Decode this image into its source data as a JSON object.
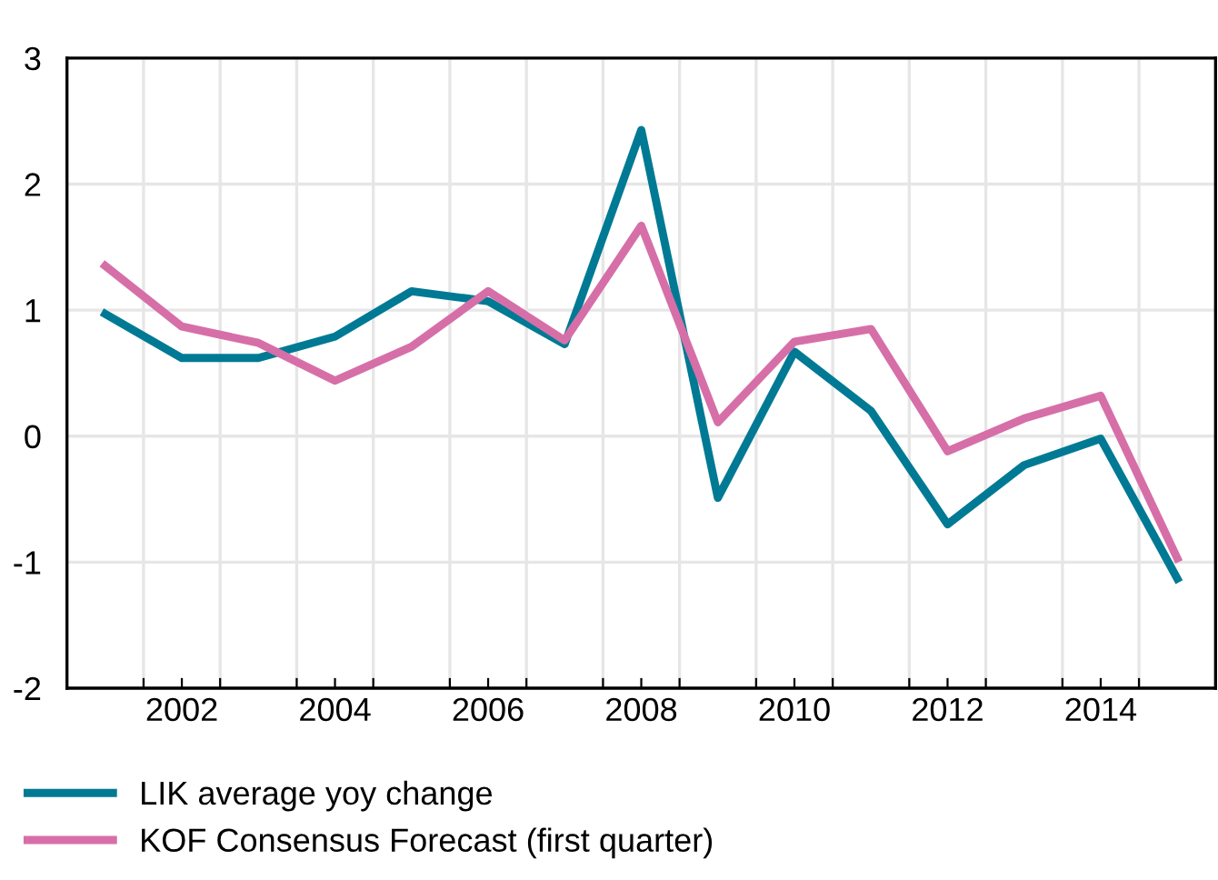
{
  "chart_data": {
    "type": "line",
    "x": [
      2001,
      2002,
      2003,
      2004,
      2005,
      2006,
      2007,
      2008,
      2009,
      2010,
      2011,
      2012,
      2013,
      2014,
      2015
    ],
    "series": [
      {
        "name": "LIK average yoy change",
        "color": "#007a94",
        "values": [
          0.97,
          0.62,
          0.62,
          0.79,
          1.15,
          1.07,
          0.73,
          2.43,
          -0.49,
          0.67,
          0.2,
          -0.7,
          -0.23,
          -0.02,
          -1.13
        ]
      },
      {
        "name": "KOF Consensus Forecast (first quarter)",
        "color": "#d66fa8",
        "values": [
          1.35,
          0.87,
          0.74,
          0.44,
          0.71,
          1.15,
          0.76,
          1.67,
          0.11,
          0.75,
          0.85,
          -0.12,
          0.14,
          0.32,
          -0.97
        ]
      }
    ],
    "xlim": [
      2000.5,
      2015.5
    ],
    "xticks": [
      {
        "value": 2001.5,
        "label": null
      },
      2002,
      {
        "value": 2002.5,
        "label": null
      },
      {
        "value": 2003.5,
        "label": null
      },
      2004,
      {
        "value": 2004.5,
        "label": null
      },
      {
        "value": 2005.5,
        "label": null
      },
      2006,
      {
        "value": 2006.5,
        "label": null
      },
      {
        "value": 2007.5,
        "label": null
      },
      2008,
      {
        "value": 2008.5,
        "label": null
      },
      {
        "value": 2009.5,
        "label": null
      },
      2010,
      {
        "value": 2010.5,
        "label": null
      },
      {
        "value": 2011.5,
        "label": null
      },
      2012,
      {
        "value": 2012.5,
        "label": null
      },
      {
        "value": 2013.5,
        "label": null
      },
      2014,
      {
        "value": 2014.5,
        "label": null
      }
    ],
    "ylim": [
      -2,
      3
    ],
    "yticks": [
      -2,
      -1,
      0,
      1,
      2,
      3
    ],
    "grid": true,
    "legend": "bottom",
    "marker": "none",
    "line_style": "solid"
  }
}
